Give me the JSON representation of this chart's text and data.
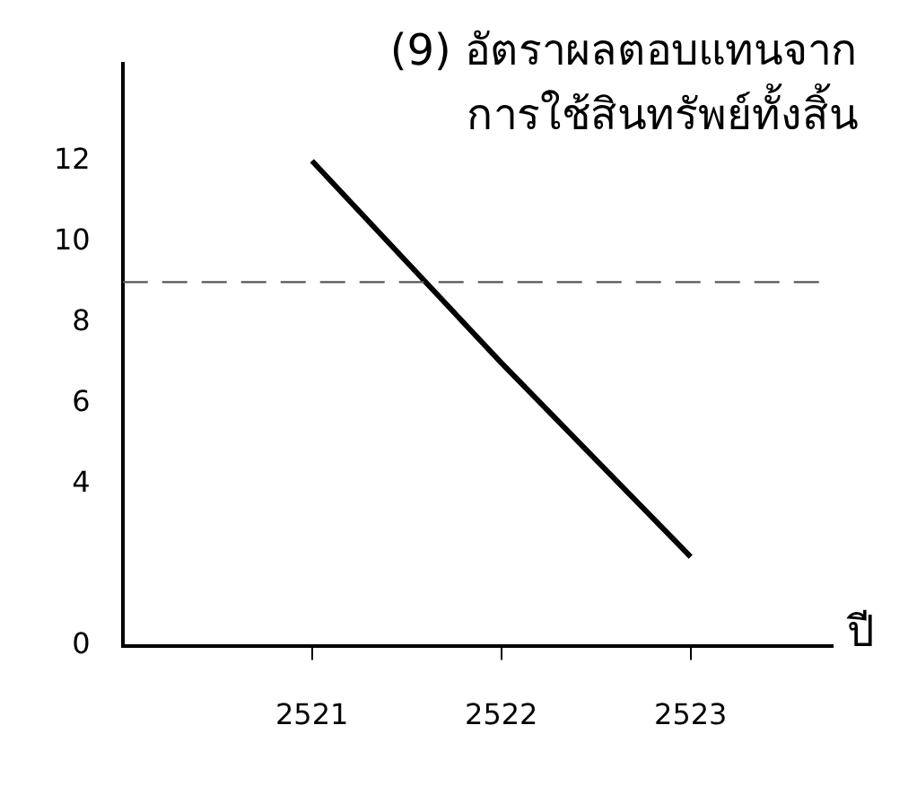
{
  "chart_data": {
    "type": "line",
    "title": "(9) อัตราผลตอบแทนจาก\nการใช้สินทรัพย์ทั้งสิ้น",
    "xlabel": "ปี",
    "x": [
      2521,
      2522,
      2523
    ],
    "series": [
      {
        "color": "#000000",
        "values": [
          12,
          7,
          2.2
        ]
      }
    ],
    "xlim": [
      2520,
      2523.75
    ],
    "xticks": [
      2521,
      2522,
      2523
    ],
    "ylim": [
      0,
      14.4
    ],
    "yticks": [
      0,
      4,
      6,
      8,
      10,
      12
    ],
    "ref_lines": [
      {
        "axis": "y",
        "value": 9,
        "color": "#555555",
        "line_style": "dashed"
      }
    ],
    "grid": false,
    "legend": false,
    "marker": "none",
    "line_style": "solid"
  }
}
